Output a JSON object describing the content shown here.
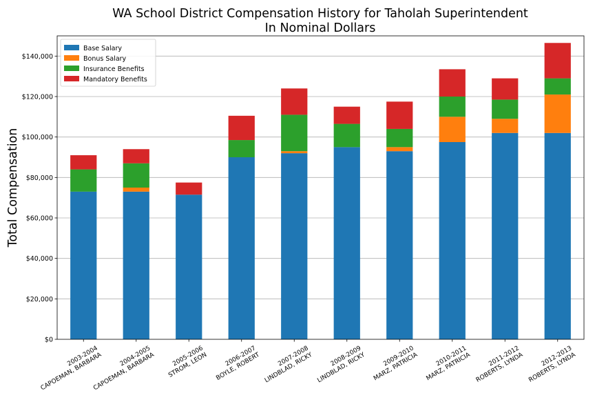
{
  "chart_data": {
    "type": "bar",
    "stacked": true,
    "title": [
      "WA School District Compensation History for Taholah Superintendent",
      "In Nominal Dollars"
    ],
    "xlabel": "",
    "ylabel": "Total Compensation",
    "ylim": [
      0,
      150000
    ],
    "yticks": [
      0,
      20000,
      40000,
      60000,
      80000,
      100000,
      120000,
      140000
    ],
    "ytick_labels": [
      "$0",
      "$20,000",
      "$40,000",
      "$60,000",
      "$80,000",
      "$100,000",
      "$120,000",
      "$140,000"
    ],
    "grid": "horizontal",
    "legend_position": "top-left",
    "categories": [
      [
        "2003-2004",
        "CAPOEMAN, BARBARA"
      ],
      [
        "2004-2005",
        "CAPOEMAN, BARBARA"
      ],
      [
        "2005-2006",
        "STROM, LEON"
      ],
      [
        "2006-2007",
        "BOYLE, ROBERT"
      ],
      [
        "2007-2008",
        "LINDBLAD, RICKY"
      ],
      [
        "2008-2009",
        "LINDBLAD, RICKY"
      ],
      [
        "2009-2010",
        "MARZ, PATRICIA"
      ],
      [
        "2010-2011",
        "MARZ, PATRICIA"
      ],
      [
        "2011-2012",
        "ROBERTS, LYNDA"
      ],
      [
        "2012-2013",
        "ROBERTS, LYNDA"
      ]
    ],
    "series": [
      {
        "name": "Base Salary",
        "color": "#1f77b4",
        "values": [
          73000,
          73000,
          71500,
          90000,
          92000,
          95000,
          93000,
          97500,
          102000,
          102000
        ]
      },
      {
        "name": "Bonus Salary",
        "color": "#ff7f0e",
        "values": [
          0,
          2000,
          0,
          0,
          1000,
          0,
          2000,
          12500,
          7000,
          19000
        ]
      },
      {
        "name": "Insurance Benefits",
        "color": "#2ca02c",
        "values": [
          11000,
          12000,
          0,
          8500,
          18000,
          11500,
          9000,
          10000,
          9500,
          8000
        ]
      },
      {
        "name": "Mandatory Benefits",
        "color": "#d62728",
        "values": [
          7000,
          7000,
          6000,
          12000,
          13000,
          8500,
          13500,
          13500,
          10500,
          17500
        ]
      }
    ]
  }
}
